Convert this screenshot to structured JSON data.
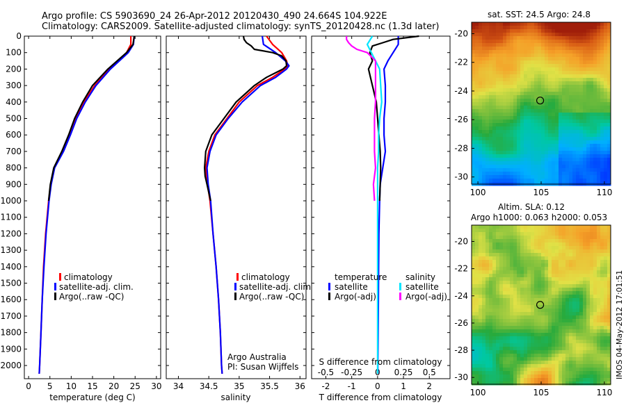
{
  "header": {
    "line1": "Argo profile: CS 5903690_24 26-Apr-2012 20120430_490 24.664S 104.922E",
    "line2": "Climatology: CARS2009. Satellite-adjusted climatology: synTS_20120428.nc (1.3d later)"
  },
  "colors": {
    "climatology": "#ff0000",
    "satellite": "#0000ff",
    "argo": "#000000",
    "sat_salinity": "#00e5ff",
    "argo_salinity_diff": "#ff00ff"
  },
  "chart_data": [
    {
      "type": "line",
      "name": "temperature",
      "xlabel": "temperature (deg C)",
      "ylabel": "",
      "xlim": [
        -1,
        31
      ],
      "ylim": [
        2080,
        0
      ],
      "x_ticks": [
        0,
        5,
        10,
        15,
        20,
        25,
        30
      ],
      "y_ticks": [
        0,
        100,
        200,
        300,
        400,
        500,
        600,
        700,
        800,
        900,
        1000,
        1100,
        1200,
        1300,
        1400,
        1500,
        1600,
        1700,
        1800,
        1900,
        2000
      ],
      "legend": [
        "climatology",
        "satellite-adj. clim.",
        "Argo(..raw -QC)"
      ],
      "series": [
        {
          "name": "climatology",
          "depth": [
            0,
            50,
            100,
            150,
            200,
            300,
            400,
            500,
            600,
            700,
            800,
            900,
            1000,
            1200,
            1400,
            1600,
            1800,
            2000,
            2050
          ],
          "values": [
            24.0,
            24.0,
            23.0,
            21.0,
            19.0,
            15.5,
            13.0,
            11.0,
            9.5,
            8.0,
            6.0,
            5.2,
            4.7,
            4.0,
            3.5,
            3.2,
            2.9,
            2.6,
            2.5
          ]
        },
        {
          "name": "satellite-adj. clim.",
          "depth": [
            0,
            50,
            100,
            150,
            200,
            300,
            400,
            500,
            600,
            700,
            800,
            900,
            1000,
            1200,
            1400,
            1600,
            1800,
            2000,
            2050
          ],
          "values": [
            24.8,
            24.6,
            23.4,
            21.3,
            19.2,
            15.8,
            13.3,
            11.3,
            9.8,
            8.2,
            6.1,
            5.3,
            4.8,
            4.1,
            3.6,
            3.2,
            2.9,
            2.6,
            2.5
          ]
        },
        {
          "name": "Argo(..raw -QC)",
          "depth": [
            0,
            50,
            100,
            150,
            200,
            300,
            400,
            500,
            600,
            700,
            800,
            900,
            1000
          ],
          "values": [
            24.8,
            24.5,
            23.0,
            20.8,
            18.6,
            15.0,
            12.7,
            10.8,
            9.4,
            7.8,
            5.9,
            5.1,
            4.7
          ]
        }
      ]
    },
    {
      "type": "line",
      "name": "salinity",
      "xlabel": "salinity",
      "xlim": [
        33.8,
        36.1
      ],
      "ylim": [
        2080,
        0
      ],
      "x_ticks": [
        34,
        34.5,
        35,
        35.5,
        36
      ],
      "legend": [
        "climatology",
        "satellite-adj. clim.",
        "Argo(..raw -QC)"
      ],
      "annotation": [
        "Argo Australia",
        "PI: Susan Wijffels"
      ],
      "series": [
        {
          "name": "climatology",
          "depth": [
            0,
            50,
            100,
            150,
            180,
            200,
            250,
            300,
            400,
            500,
            600,
            700,
            800,
            900,
            1000,
            1200,
            1400,
            1600,
            1800,
            2000,
            2050
          ],
          "values": [
            35.45,
            35.55,
            35.7,
            35.78,
            35.8,
            35.75,
            35.55,
            35.3,
            35.0,
            34.8,
            34.6,
            34.5,
            34.45,
            34.48,
            34.52,
            34.57,
            34.62,
            34.66,
            34.69,
            34.71,
            34.72
          ]
        },
        {
          "name": "satellite-adj. clim.",
          "depth": [
            0,
            50,
            100,
            150,
            180,
            200,
            250,
            300,
            400,
            500,
            600,
            700,
            800,
            900,
            1000,
            1200,
            1400,
            1600,
            1800,
            2000,
            2050
          ],
          "values": [
            35.38,
            35.4,
            35.6,
            35.76,
            35.82,
            35.78,
            35.6,
            35.35,
            35.05,
            34.82,
            34.62,
            34.52,
            34.47,
            34.49,
            34.53,
            34.57,
            34.62,
            34.66,
            34.69,
            34.71,
            34.72
          ]
        },
        {
          "name": "Argo(..raw -QC)",
          "depth": [
            0,
            20,
            40,
            60,
            80,
            100,
            120,
            150,
            180,
            200,
            250,
            300,
            350,
            400,
            500,
            600,
            700,
            800,
            850,
            900,
            950,
            1000
          ],
          "values": [
            35.07,
            35.08,
            35.12,
            35.2,
            35.25,
            35.55,
            35.7,
            35.77,
            35.78,
            35.72,
            35.45,
            35.25,
            35.1,
            34.95,
            34.75,
            34.55,
            34.45,
            34.43,
            34.44,
            34.47,
            34.5,
            34.53
          ]
        }
      ]
    },
    {
      "type": "line",
      "name": "difference",
      "xlabel": "T difference from climatology",
      "xlabel_top": "S difference from climatology",
      "xlim": [
        -2.55,
        2.8
      ],
      "ylim": [
        2080,
        0
      ],
      "x_ticks": [
        -2,
        -1,
        0,
        1,
        2
      ],
      "s_ticks": [
        -0.5,
        -0.25,
        0,
        0.25,
        0.5
      ],
      "s_tick_labels": [
        "-0.5",
        "-0.25",
        "0",
        "0.25",
        "0.5"
      ],
      "legend_headers": [
        "temperature",
        "salinity"
      ],
      "legend": [
        "satellite",
        "Argo(-adj)",
        "satellite",
        "Argo(-adj)"
      ],
      "series": [
        {
          "name": "satellite",
          "quantity": "temperature",
          "depth": [
            0,
            50,
            100,
            150,
            200,
            300,
            400,
            500,
            600,
            700,
            800,
            900,
            1000,
            1200,
            1400,
            1600,
            1800,
            2000,
            2050
          ],
          "values": [
            0.8,
            0.8,
            0.6,
            0.4,
            0.25,
            0.3,
            0.3,
            0.25,
            0.25,
            0.3,
            0.2,
            0.1,
            0.08,
            0.05,
            0.04,
            0.03,
            0.02,
            0.01,
            0.01
          ]
        },
        {
          "name": "Argo(-adj)",
          "quantity": "temperature",
          "depth": [
            0,
            20,
            40,
            60,
            80,
            100,
            150,
            200,
            300,
            400,
            500,
            600,
            700,
            800,
            900,
            1000
          ],
          "values": [
            1.6,
            0.6,
            0.2,
            -0.2,
            -0.25,
            -0.3,
            -0.2,
            -0.35,
            -0.2,
            -0.05,
            0.0,
            0.05,
            0.1,
            0.12,
            0.1,
            0.08
          ]
        },
        {
          "name": "satellite",
          "quantity": "salinity",
          "depth": [
            0,
            50,
            100,
            150,
            200,
            300,
            400,
            500,
            600,
            700,
            800,
            900,
            1000,
            1200,
            1400,
            1600,
            1800,
            2000,
            2050
          ],
          "values": [
            -0.05,
            -0.1,
            -0.06,
            -0.02,
            0.02,
            0.03,
            0.04,
            0.02,
            0.01,
            0.01,
            0.0,
            0.0,
            0.0,
            0.0,
            0.0,
            0.0,
            0.0,
            0.0,
            0.0
          ]
        },
        {
          "name": "Argo(-adj)",
          "quantity": "salinity",
          "depth": [
            0,
            20,
            40,
            60,
            80,
            100,
            150,
            200,
            300,
            400,
            500,
            600,
            700,
            800,
            900,
            1000
          ],
          "values": [
            -0.3,
            -0.3,
            -0.28,
            -0.25,
            -0.2,
            -0.1,
            -0.02,
            -0.02,
            -0.02,
            -0.02,
            -0.03,
            -0.03,
            -0.03,
            -0.02,
            -0.04,
            -0.03
          ]
        }
      ]
    },
    {
      "type": "heatmap",
      "name": "sst_map",
      "title": "sat. SST: 24.5 Argo: 24.8",
      "xlim": [
        99.5,
        110.5
      ],
      "ylim": [
        -30.5,
        -19.2
      ],
      "x_ticks": [
        100,
        105,
        110
      ],
      "y_ticks": [
        -20,
        -22,
        -24,
        -26,
        -28,
        -30
      ],
      "marker": [
        104.922,
        -24.664
      ]
    },
    {
      "type": "heatmap",
      "name": "sla_map",
      "title": [
        "Altim. SLA: 0.12",
        "Argo h1000: 0.063 h2000: 0.053"
      ],
      "xlim": [
        99.5,
        110.5
      ],
      "ylim": [
        -30.5,
        -18.8
      ],
      "x_ticks": [
        100,
        105,
        110
      ],
      "y_ticks": [
        -20,
        -22,
        -24,
        -26,
        -28,
        -30
      ],
      "marker": [
        104.922,
        -24.664
      ]
    }
  ],
  "footer": {
    "stamp": "IMOS 04-May-2012 17:01:51"
  }
}
